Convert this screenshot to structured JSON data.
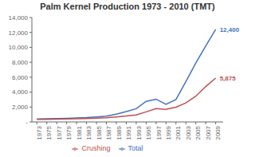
{
  "chart_data": {
    "type": "line",
    "title": "Palm Kernel Production 1973 - 2010 (TMT)",
    "x": [
      1973,
      1975,
      1977,
      1979,
      1981,
      1983,
      1985,
      1987,
      1989,
      1991,
      1993,
      1995,
      1997,
      1999,
      2001,
      2003,
      2005,
      2007,
      2009
    ],
    "series": [
      {
        "name": "Total",
        "color": "#4472C4",
        "values": [
          390,
          420,
          450,
          490,
          540,
          590,
          670,
          770,
          1050,
          1380,
          1780,
          2750,
          3050,
          2350,
          3000,
          5400,
          7900,
          10200,
          12400
        ]
      },
      {
        "name": "Crushing",
        "color": "#C0504D",
        "values": [
          340,
          360,
          380,
          410,
          440,
          460,
          500,
          550,
          680,
          790,
          940,
          1350,
          1780,
          1680,
          1980,
          2550,
          3450,
          4750,
          5875
        ]
      }
    ],
    "xlim": [
      1972,
      2010.5
    ],
    "xticks": [
      1973,
      1975,
      1977,
      1979,
      1981,
      1983,
      1985,
      1987,
      1989,
      1991,
      1993,
      1995,
      1997,
      1999,
      2001,
      2003,
      2005,
      2007,
      2009
    ],
    "ylim": [
      0,
      14000
    ],
    "yticks": [
      {
        "value": 0,
        "label": "-"
      },
      {
        "value": 2000,
        "label": "2,000"
      },
      {
        "value": 4000,
        "label": "4,000"
      },
      {
        "value": 6000,
        "label": "6,000"
      },
      {
        "value": 8000,
        "label": "8,000"
      },
      {
        "value": 10000,
        "label": "10,000"
      },
      {
        "value": 12000,
        "label": "12,000"
      },
      {
        "value": 14000,
        "label": "14,000"
      }
    ],
    "annotations": [
      {
        "text": "12,400",
        "x": 2009,
        "y": 12400,
        "color": "#4472C4"
      },
      {
        "text": "5,875",
        "x": 2009,
        "y": 5875,
        "color": "#C0504D"
      }
    ],
    "grid": false,
    "legend": "bottom"
  }
}
